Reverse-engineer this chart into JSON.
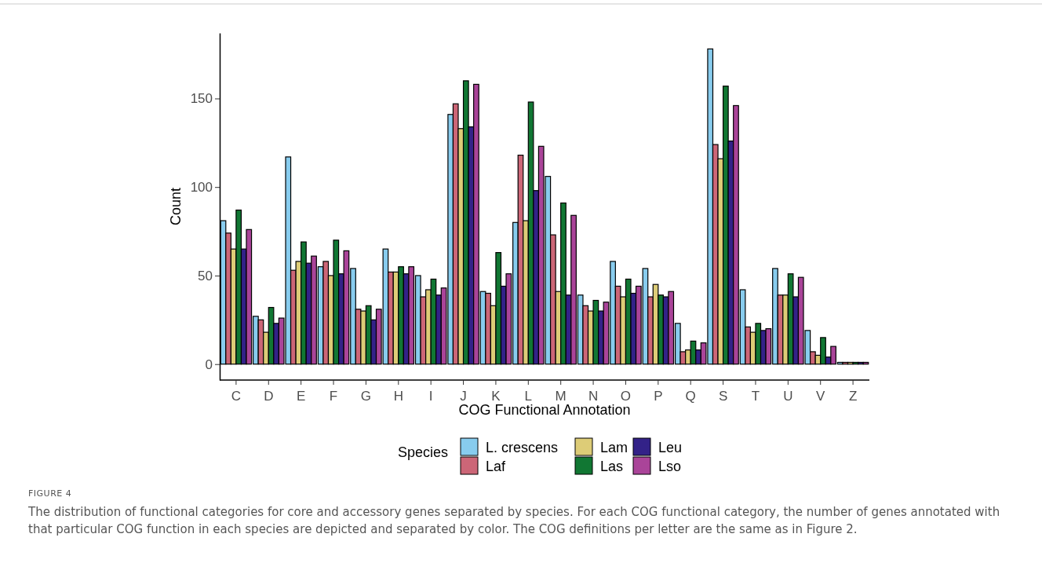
{
  "chart_data": {
    "type": "bar",
    "xlabel": "COG Functional Annotation",
    "ylabel": "Count",
    "legend_title": "Species",
    "legend": "bottom",
    "grid": false,
    "categories": [
      "C",
      "D",
      "E",
      "F",
      "G",
      "H",
      "I",
      "J",
      "K",
      "L",
      "M",
      "N",
      "O",
      "P",
      "Q",
      "S",
      "T",
      "U",
      "V",
      "Z"
    ],
    "ylim": [
      -9,
      187
    ],
    "yticks": [
      0,
      50,
      100,
      150
    ],
    "series": [
      {
        "name": "L. crescens",
        "color": "#88ccee",
        "values": [
          81,
          27,
          117,
          55,
          54,
          65,
          50,
          141,
          41,
          80,
          106,
          39,
          58,
          54,
          23,
          178,
          42,
          54,
          19,
          1
        ]
      },
      {
        "name": "Laf",
        "color": "#cc6677",
        "values": [
          74,
          25,
          53,
          58,
          31,
          52,
          38,
          147,
          40,
          118,
          73,
          33,
          44,
          38,
          7,
          124,
          21,
          39,
          7,
          1
        ]
      },
      {
        "name": "Lam",
        "color": "#ddcc77",
        "values": [
          65,
          18,
          58,
          50,
          30,
          52,
          42,
          133,
          33,
          81,
          41,
          30,
          38,
          45,
          8,
          116,
          18,
          39,
          5,
          1
        ]
      },
      {
        "name": "Las",
        "color": "#117733",
        "values": [
          87,
          32,
          69,
          70,
          33,
          55,
          48,
          160,
          63,
          148,
          91,
          36,
          48,
          39,
          13,
          157,
          23,
          51,
          15,
          1
        ]
      },
      {
        "name": "Leu",
        "color": "#332288",
        "values": [
          65,
          23,
          57,
          51,
          25,
          51,
          39,
          134,
          44,
          98,
          39,
          30,
          40,
          38,
          8,
          126,
          19,
          38,
          4,
          1
        ]
      },
      {
        "name": "Lso",
        "color": "#aa4499",
        "values": [
          76,
          26,
          61,
          64,
          31,
          55,
          43,
          158,
          51,
          123,
          84,
          35,
          44,
          41,
          12,
          146,
          20,
          49,
          10,
          1
        ]
      }
    ],
    "annotations": [
      "FIGURE 4",
      "The distribution of functional categories for core and accessory genes separated by species. For each COG functional category, the number of genes annotated with that particular COG function in each species are depicted and separated by color. The COG definitions per letter are the same as in Figure 2."
    ]
  }
}
